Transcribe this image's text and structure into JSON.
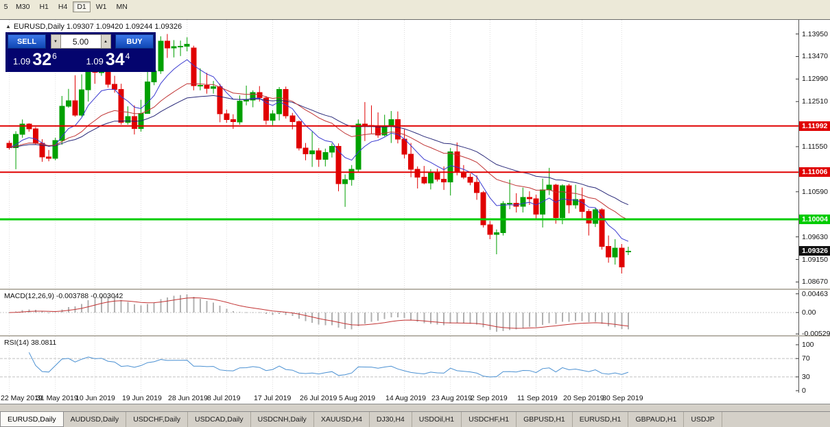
{
  "toolbar": {
    "timeframes": [
      {
        "label": "5",
        "active": false,
        "partial": true
      },
      {
        "label": "M30",
        "active": false
      },
      {
        "label": "H1",
        "active": false
      },
      {
        "label": "H4",
        "active": false
      },
      {
        "label": "D1",
        "active": true
      },
      {
        "label": "W1",
        "active": false
      },
      {
        "label": "MN",
        "active": false
      }
    ]
  },
  "chart_header": {
    "text": "EURUSD,Daily 1.09307 1.09420 1.09244 1.09326"
  },
  "icons": {
    "symbol_marker": "▲",
    "volume_down": "▼",
    "volume_up": "▲"
  },
  "trade_panel": {
    "sell_label": "SELL",
    "buy_label": "BUY",
    "volume": "5.00",
    "sell_price": {
      "base": "1.09",
      "pips": "32",
      "point": "6"
    },
    "buy_price": {
      "base": "1.09",
      "pips": "34",
      "point": "4"
    }
  },
  "indicators": {
    "macd_label": "MACD(12,26,9) -0.003788 -0.003042",
    "rsi_label": "RSI(14) 38.0811"
  },
  "chart_data": {
    "type": "candlestick",
    "title": "EURUSD Daily",
    "symbol": "EURUSD",
    "timeframe": "Daily",
    "price_range": [
      1.0853,
      1.1425
    ],
    "up_color": "#00A000",
    "down_color": "#E00000",
    "grid_color": "#dcdcdc",
    "candles": [
      [
        1.1162,
        1.1168,
        1.1149,
        1.1153
      ],
      [
        1.1153,
        1.1188,
        1.1107,
        1.1181
      ],
      [
        1.1181,
        1.1213,
        1.1174,
        1.1203
      ],
      [
        1.1203,
        1.1205,
        1.1187,
        1.1193
      ],
      [
        1.1193,
        1.1197,
        1.1159,
        1.1162
      ],
      [
        1.1162,
        1.1171,
        1.1123,
        1.1133
      ],
      [
        1.1133,
        1.1148,
        1.1124,
        1.113
      ],
      [
        1.113,
        1.1174,
        1.1126,
        1.1168
      ],
      [
        1.1168,
        1.1263,
        1.1159,
        1.1241
      ],
      [
        1.1241,
        1.1278,
        1.1238,
        1.1253
      ],
      [
        1.1253,
        1.1307,
        1.1219,
        1.1222
      ],
      [
        1.1222,
        1.1309,
        1.1219,
        1.1276
      ],
      [
        1.1276,
        1.1348,
        1.1251,
        1.1334
      ],
      [
        1.1318,
        1.1332,
        1.1289,
        1.1313
      ],
      [
        1.1313,
        1.1338,
        1.1306,
        1.1328
      ],
      [
        1.1328,
        1.1344,
        1.1281,
        1.1288
      ],
      [
        1.1288,
        1.1306,
        1.127,
        1.1277
      ],
      [
        1.1277,
        1.1289,
        1.1202,
        1.1207
      ],
      [
        1.1207,
        1.1241,
        1.1202,
        1.1219
      ],
      [
        1.1219,
        1.1243,
        1.1181,
        1.1194
      ],
      [
        1.1194,
        1.1255,
        1.1187,
        1.1226
      ],
      [
        1.1226,
        1.1317,
        1.1226,
        1.1293
      ],
      [
        1.1293,
        1.1319,
        1.1286,
        1.1316
      ],
      [
        1.1316,
        1.139,
        1.131,
        1.138
      ],
      [
        1.138,
        1.1395,
        1.1344,
        1.1365
      ],
      [
        1.1365,
        1.1382,
        1.1345,
        1.1368
      ],
      [
        1.1368,
        1.1381,
        1.1348,
        1.1369
      ],
      [
        1.1369,
        1.1388,
        1.1358,
        1.1373
      ],
      [
        1.1365,
        1.137,
        1.1275,
        1.1285
      ],
      [
        1.1285,
        1.1322,
        1.1275,
        1.1286
      ],
      [
        1.1286,
        1.1312,
        1.1268,
        1.1279
      ],
      [
        1.1279,
        1.1295,
        1.1268,
        1.1283
      ],
      [
        1.1283,
        1.1289,
        1.1207,
        1.1225
      ],
      [
        1.1225,
        1.1234,
        1.1206,
        1.1213
      ],
      [
        1.1213,
        1.1224,
        1.1193,
        1.1208
      ],
      [
        1.1208,
        1.1264,
        1.1202,
        1.1252
      ],
      [
        1.1252,
        1.1285,
        1.1243,
        1.1254
      ],
      [
        1.1254,
        1.1275,
        1.1239,
        1.127
      ],
      [
        1.127,
        1.1284,
        1.1251,
        1.1259
      ],
      [
        1.1259,
        1.1263,
        1.1202,
        1.1211
      ],
      [
        1.1211,
        1.1233,
        1.1201,
        1.1225
      ],
      [
        1.1225,
        1.1282,
        1.1211,
        1.1277
      ],
      [
        1.1277,
        1.1283,
        1.1215,
        1.1221
      ],
      [
        1.1221,
        1.1227,
        1.1192,
        1.1208
      ],
      [
        1.1208,
        1.1211,
        1.1147,
        1.1152
      ],
      [
        1.1152,
        1.1163,
        1.1126,
        1.114
      ],
      [
        1.114,
        1.1187,
        1.1112,
        1.1146
      ],
      [
        1.1146,
        1.1152,
        1.1112,
        1.1128
      ],
      [
        1.1128,
        1.1151,
        1.1113,
        1.1143
      ],
      [
        1.1143,
        1.1162,
        1.1132,
        1.1156
      ],
      [
        1.1156,
        1.1162,
        1.106,
        1.1076
      ],
      [
        1.1076,
        1.1096,
        1.1027,
        1.1085
      ],
      [
        1.1085,
        1.1116,
        1.1072,
        1.1107
      ],
      [
        1.1107,
        1.1213,
        1.1101,
        1.1203
      ],
      [
        1.1203,
        1.125,
        1.1167,
        1.12
      ],
      [
        1.12,
        1.1243,
        1.1183,
        1.1199
      ],
      [
        1.1199,
        1.1228,
        1.1174,
        1.118
      ],
      [
        1.118,
        1.1223,
        1.1177,
        1.1199
      ],
      [
        1.1199,
        1.1231,
        1.1163,
        1.1213
      ],
      [
        1.1213,
        1.123,
        1.1162,
        1.1171
      ],
      [
        1.1171,
        1.1192,
        1.113,
        1.1139
      ],
      [
        1.1139,
        1.1163,
        1.109,
        1.1107
      ],
      [
        1.1107,
        1.1113,
        1.1066,
        1.109
      ],
      [
        1.109,
        1.1114,
        1.1075,
        1.1078
      ],
      [
        1.1078,
        1.1107,
        1.1064,
        1.1099
      ],
      [
        1.1099,
        1.1108,
        1.1081,
        1.1086
      ],
      [
        1.1086,
        1.1113,
        1.1063,
        1.108
      ],
      [
        1.108,
        1.1152,
        1.1051,
        1.1144
      ],
      [
        1.1144,
        1.1164,
        1.1094,
        1.1101
      ],
      [
        1.1101,
        1.1116,
        1.1086,
        1.109
      ],
      [
        1.109,
        1.1098,
        1.1073,
        1.1079
      ],
      [
        1.1079,
        1.1094,
        1.1042,
        1.1057
      ],
      [
        1.1057,
        1.1061,
        1.0983,
        1.0989
      ],
      [
        1.0989,
        1.0997,
        1.0958,
        1.0968
      ],
      [
        1.0968,
        1.0979,
        1.0926,
        1.0972
      ],
      [
        1.0972,
        1.1039,
        1.0966,
        1.1034
      ],
      [
        1.1034,
        1.1085,
        1.1022,
        1.1035
      ],
      [
        1.1035,
        1.1056,
        1.1015,
        1.1028
      ],
      [
        1.1028,
        1.1068,
        1.1015,
        1.1047
      ],
      [
        1.1047,
        1.106,
        1.1031,
        1.1044
      ],
      [
        1.1044,
        1.1053,
        1.0999,
        1.1011
      ],
      [
        1.1011,
        1.1087,
        1.0983,
        1.1063
      ],
      [
        1.1063,
        1.111,
        1.1052,
        1.1073
      ],
      [
        1.1073,
        1.1076,
        1.0991,
        1.1004
      ],
      [
        1.1004,
        1.1075,
        1.099,
        1.1072
      ],
      [
        1.1072,
        1.1076,
        1.1013,
        1.1031
      ],
      [
        1.1031,
        1.1074,
        1.1023,
        1.1043
      ],
      [
        1.1043,
        1.1068,
        1.1003,
        1.1017
      ],
      [
        1.1017,
        1.1022,
        1.0966,
        1.0992
      ],
      [
        1.0992,
        1.1024,
        1.0984,
        1.1021
      ],
      [
        1.1021,
        1.1024,
        1.0936,
        1.0943
      ],
      [
        1.0943,
        1.0966,
        1.0908,
        1.092
      ],
      [
        1.092,
        1.0958,
        1.0904,
        1.0939
      ],
      [
        1.0939,
        1.0948,
        1.0885,
        1.0899
      ],
      [
        1.09307,
        1.0942,
        1.09244,
        1.09326
      ]
    ],
    "date_ticks": [
      {
        "i": 0,
        "label": "22 May 2019"
      },
      {
        "i": 7,
        "label": "31 May 2019"
      },
      {
        "i": 13,
        "label": "10 Jun 2019"
      },
      {
        "i": 20,
        "label": "19 Jun 2019"
      },
      {
        "i": 27,
        "label": "28 Jun 2019"
      },
      {
        "i": 33,
        "label": "8 Jul 2019"
      },
      {
        "i": 40,
        "label": "17 Jul 2019"
      },
      {
        "i": 47,
        "label": "26 Jul 2019"
      },
      {
        "i": 53,
        "label": "5 Aug 2019"
      },
      {
        "i": 60,
        "label": "14 Aug 2019"
      },
      {
        "i": 67,
        "label": "23 Aug 2019"
      },
      {
        "i": 73,
        "label": "2 Sep 2019"
      },
      {
        "i": 80,
        "label": "11 Sep 2019"
      },
      {
        "i": 87,
        "label": "20 Sep 2019"
      },
      {
        "i": 93,
        "label": "30 Sep 2019"
      }
    ],
    "price_ticks": [
      {
        "v": 1.1395,
        "label": "1.13950"
      },
      {
        "v": 1.1347,
        "label": "1.13470"
      },
      {
        "v": 1.1299,
        "label": "1.12990"
      },
      {
        "v": 1.1251,
        "label": "1.12510"
      },
      {
        "v": 1.1155,
        "label": "1.11550"
      },
      {
        "v": 1.1059,
        "label": "1.10590"
      },
      {
        "v": 1.0963,
        "label": "1.09630"
      },
      {
        "v": 1.0915,
        "label": "1.09150"
      },
      {
        "v": 1.0867,
        "label": "1.08670"
      }
    ],
    "hlines": [
      {
        "value": 1.11992,
        "label": "1.11992",
        "color": "#e00000",
        "width": 2
      },
      {
        "value": 1.11006,
        "label": "1.11006",
        "color": "#e00000",
        "width": 2
      },
      {
        "value": 1.10004,
        "label": "1.10004",
        "color": "#00cc00",
        "width": 3
      }
    ],
    "current_price": {
      "value": 1.09326,
      "label": "1.09326",
      "tag_color": "#111111"
    },
    "overlays": [
      {
        "name": "ma-fast",
        "type": "ema",
        "period": 8,
        "color": "#3a3ad0"
      },
      {
        "name": "ma-slow",
        "type": "ema",
        "period": 34,
        "color": "#282878"
      },
      {
        "name": "ma-mid",
        "type": "ema",
        "period": 21,
        "color": "#c03434"
      }
    ],
    "macd": {
      "params": [
        12,
        26,
        9
      ],
      "value": -0.003788,
      "signal": -0.003042,
      "hist_color": "#b0b0b0",
      "signal_color": "#c23232",
      "range": [
        -0.0056,
        0.0056
      ],
      "axis_ticks": [
        {
          "v": 0.00463,
          "label": "0.00463"
        },
        {
          "v": 0,
          "label": "0.00"
        },
        {
          "v": -0.00529,
          "label": "-0.00529"
        }
      ]
    },
    "rsi": {
      "period": 14,
      "value": 38.0811,
      "color": "#4a90d2",
      "range": [
        0,
        100
      ],
      "levels": [
        30,
        70
      ],
      "axis_ticks": [
        {
          "v": 100,
          "label": "100"
        },
        {
          "v": 70,
          "label": "70"
        },
        {
          "v": 30,
          "label": "30"
        },
        {
          "v": 0,
          "label": "0"
        }
      ]
    }
  },
  "tabs": [
    {
      "label": "EURUSD,Daily",
      "active": true
    },
    {
      "label": "AUDUSD,Daily",
      "active": false
    },
    {
      "label": "USDCHF,Daily",
      "active": false
    },
    {
      "label": "USDCAD,Daily",
      "active": false
    },
    {
      "label": "USDCNH,Daily",
      "active": false
    },
    {
      "label": "XAUUSD,H4",
      "active": false
    },
    {
      "label": "DJ30,H4",
      "active": false
    },
    {
      "label": "USDOil,H1",
      "active": false
    },
    {
      "label": "USDCHF,H1",
      "active": false
    },
    {
      "label": "GBPUSD,H1",
      "active": false
    },
    {
      "label": "EURUSD,H1",
      "active": false
    },
    {
      "label": "GBPAUD,H1",
      "active": false
    },
    {
      "label": "USDJP",
      "active": false
    }
  ]
}
